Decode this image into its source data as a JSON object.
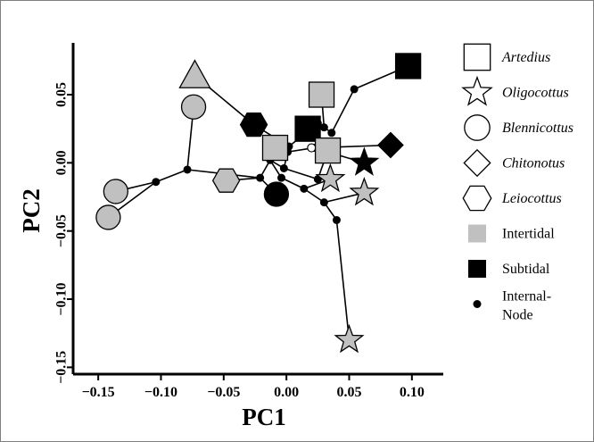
{
  "chart_data": {
    "type": "scatter",
    "xlabel": "PC1",
    "ylabel": "PC2",
    "xlim": [
      -0.17,
      0.125
    ],
    "ylim": [
      -0.155,
      0.088
    ],
    "xticks": [
      -0.15,
      -0.1,
      -0.05,
      0.0,
      0.05,
      0.1
    ],
    "xtick_labels": [
      "−0.15",
      "−0.10",
      "−0.05",
      "0.00",
      "0.05",
      "0.10"
    ],
    "yticks": [
      -0.15,
      -0.1,
      -0.05,
      0.0,
      0.05
    ],
    "ytick_labels": [
      "−0.15",
      "−0.10",
      "−0.05",
      "0.00",
      "0.05"
    ],
    "grid": false,
    "legend_position": "right",
    "colors": {
      "intertidal": "#c0c0c0",
      "subtidal": "#000000",
      "edge": "#000000",
      "line": "#000000"
    },
    "legend": [
      {
        "label": "Artedius",
        "symbol": "square",
        "fill": "none",
        "italic": true
      },
      {
        "label": "Oligocottus",
        "symbol": "star",
        "fill": "none",
        "italic": true
      },
      {
        "label": "Blennicottus",
        "symbol": "circle",
        "fill": "none",
        "italic": true
      },
      {
        "label": "Chitonotus",
        "symbol": "diamond",
        "fill": "none",
        "italic": true
      },
      {
        "label": "Leiocottus",
        "symbol": "hexagon",
        "fill": "none",
        "italic": true
      },
      {
        "label": "Intertidal",
        "symbol": "filled-square",
        "fill": "intertidal",
        "italic": false
      },
      {
        "label": "Subtidal",
        "symbol": "filled-square",
        "fill": "subtidal",
        "italic": false
      },
      {
        "label": "Internal-\nNode",
        "symbol": "dot",
        "fill": "subtidal",
        "italic": false
      }
    ],
    "internal_nodes": [
      {
        "id": "A",
        "x": -0.104,
        "y": -0.014
      },
      {
        "id": "B",
        "x": -0.079,
        "y": -0.005
      },
      {
        "id": "C",
        "x": -0.021,
        "y": -0.011
      },
      {
        "id": "D",
        "x": -0.013,
        "y": 0.002
      },
      {
        "id": "E",
        "x": -0.004,
        "y": -0.011
      },
      {
        "id": "F",
        "x": -0.002,
        "y": -0.004
      },
      {
        "id": "G",
        "x": 0.002,
        "y": 0.012
      },
      {
        "id": "H",
        "x": 0.001,
        "y": 0.008
      },
      {
        "id": "I",
        "x": 0.014,
        "y": -0.019
      },
      {
        "id": "J",
        "x": 0.025,
        "y": -0.012
      },
      {
        "id": "K",
        "x": 0.025,
        "y": 0.029
      },
      {
        "id": "L",
        "x": 0.03,
        "y": 0.026
      },
      {
        "id": "M",
        "x": 0.036,
        "y": 0.022
      },
      {
        "id": "N",
        "x": 0.03,
        "y": -0.029
      },
      {
        "id": "O",
        "x": 0.04,
        "y": -0.042
      },
      {
        "id": "P",
        "x": 0.054,
        "y": 0.054
      },
      {
        "id": "Q",
        "x": 0.022,
        "y": 0.011
      }
    ],
    "tips": [
      {
        "x": -0.073,
        "y": 0.064,
        "symbol": "triangle",
        "group": "intertidal"
      },
      {
        "x": -0.074,
        "y": 0.041,
        "symbol": "circle",
        "group": "intertidal"
      },
      {
        "x": -0.136,
        "y": -0.021,
        "symbol": "circle",
        "group": "intertidal"
      },
      {
        "x": -0.142,
        "y": -0.04,
        "symbol": "circle",
        "group": "intertidal"
      },
      {
        "x": -0.048,
        "y": -0.013,
        "symbol": "hexagon",
        "group": "intertidal"
      },
      {
        "x": -0.026,
        "y": 0.028,
        "symbol": "hexagon",
        "group": "subtidal"
      },
      {
        "x": -0.009,
        "y": 0.011,
        "symbol": "square",
        "group": "intertidal"
      },
      {
        "x": 0.017,
        "y": 0.025,
        "symbol": "square",
        "group": "subtidal"
      },
      {
        "x": 0.028,
        "y": 0.05,
        "symbol": "square",
        "group": "intertidal"
      },
      {
        "x": 0.033,
        "y": 0.009,
        "symbol": "square",
        "group": "intertidal"
      },
      {
        "x": 0.097,
        "y": 0.071,
        "symbol": "square",
        "group": "subtidal"
      },
      {
        "x": 0.083,
        "y": 0.013,
        "symbol": "diamond",
        "group": "subtidal"
      },
      {
        "x": 0.062,
        "y": 0.0,
        "symbol": "star",
        "group": "subtidal"
      },
      {
        "x": -0.008,
        "y": -0.023,
        "symbol": "circle",
        "group": "subtidal"
      },
      {
        "x": 0.035,
        "y": -0.012,
        "symbol": "star",
        "group": "intertidal"
      },
      {
        "x": 0.062,
        "y": -0.022,
        "symbol": "star",
        "group": "intertidal"
      },
      {
        "x": 0.05,
        "y": -0.13,
        "symbol": "star",
        "group": "intertidal"
      }
    ],
    "edges": [
      [
        [
          -0.142,
          -0.04
        ],
        [
          -0.104,
          -0.014
        ]
      ],
      [
        [
          -0.136,
          -0.021
        ],
        [
          -0.104,
          -0.014
        ]
      ],
      [
        [
          -0.104,
          -0.014
        ],
        [
          -0.079,
          -0.005
        ]
      ],
      [
        [
          -0.079,
          -0.005
        ],
        [
          -0.074,
          0.041
        ]
      ],
      [
        [
          -0.079,
          -0.005
        ],
        [
          -0.021,
          -0.011
        ]
      ],
      [
        [
          -0.021,
          -0.011
        ],
        [
          -0.048,
          -0.013
        ]
      ],
      [
        [
          -0.021,
          -0.011
        ],
        [
          -0.013,
          0.002
        ]
      ],
      [
        [
          -0.021,
          -0.011
        ],
        [
          -0.008,
          -0.023
        ]
      ],
      [
        [
          -0.013,
          0.002
        ],
        [
          -0.004,
          -0.011
        ]
      ],
      [
        [
          -0.004,
          -0.011
        ],
        [
          0.014,
          -0.019
        ]
      ],
      [
        [
          0.014,
          -0.019
        ],
        [
          0.035,
          -0.012
        ]
      ],
      [
        [
          0.014,
          -0.019
        ],
        [
          0.03,
          -0.029
        ]
      ],
      [
        [
          0.03,
          -0.029
        ],
        [
          0.062,
          -0.022
        ]
      ],
      [
        [
          0.03,
          -0.029
        ],
        [
          0.04,
          -0.042
        ]
      ],
      [
        [
          0.04,
          -0.042
        ],
        [
          0.05,
          -0.13
        ]
      ],
      [
        [
          -0.013,
          0.002
        ],
        [
          -0.002,
          -0.004
        ]
      ],
      [
        [
          -0.002,
          -0.004
        ],
        [
          0.001,
          0.008
        ]
      ],
      [
        [
          -0.002,
          -0.004
        ],
        [
          0.025,
          -0.012
        ]
      ],
      [
        [
          0.025,
          -0.012
        ],
        [
          0.033,
          0.009
        ]
      ],
      [
        [
          0.001,
          0.008
        ],
        [
          0.022,
          0.011
        ]
      ],
      [
        [
          0.022,
          0.011
        ],
        [
          0.062,
          0.0
        ]
      ],
      [
        [
          0.022,
          0.011
        ],
        [
          0.083,
          0.013
        ]
      ],
      [
        [
          0.001,
          0.008
        ],
        [
          0.002,
          0.012
        ]
      ],
      [
        [
          0.002,
          0.012
        ],
        [
          -0.009,
          0.011
        ]
      ],
      [
        [
          0.002,
          0.012
        ],
        [
          0.025,
          0.029
        ]
      ],
      [
        [
          0.025,
          0.029
        ],
        [
          0.017,
          0.025
        ]
      ],
      [
        [
          0.025,
          0.029
        ],
        [
          0.03,
          0.026
        ]
      ],
      [
        [
          0.03,
          0.026
        ],
        [
          0.028,
          0.05
        ]
      ],
      [
        [
          0.03,
          0.026
        ],
        [
          0.036,
          0.022
        ]
      ],
      [
        [
          0.036,
          0.022
        ],
        [
          0.054,
          0.054
        ]
      ],
      [
        [
          0.054,
          0.054
        ],
        [
          0.097,
          0.071
        ]
      ],
      [
        [
          0.002,
          0.012
        ],
        [
          -0.026,
          0.028
        ]
      ],
      [
        [
          -0.026,
          0.028
        ],
        [
          -0.073,
          0.064
        ]
      ]
    ]
  }
}
